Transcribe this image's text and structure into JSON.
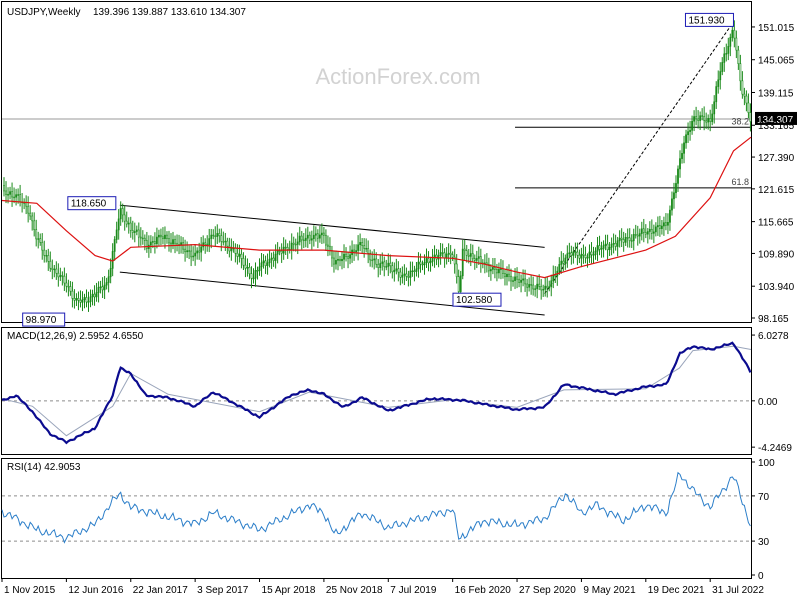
{
  "chart_data": [
    {
      "panel": "price",
      "type": "candlestick",
      "title": "USDJPY,Weekly",
      "ohlc": "139.396 139.887 133.610 134.307",
      "watermark": "ActionForex.com",
      "ylim": [
        98.165,
        155.0
      ],
      "y_ticks": [
        "151.015",
        "145.065",
        "139.115",
        "133.165",
        "127.390",
        "121.615",
        "115.665",
        "109.890",
        "103.940",
        "98.165"
      ],
      "current_price": "134.307",
      "price_path": [
        [
          "1 Nov 2015",
          121.5
        ],
        [
          "20 Dec 2015",
          120.2
        ],
        [
          "1 Feb 2016",
          118.0
        ],
        [
          "1 Mar 2016",
          112.5
        ],
        [
          "1 May 2016",
          106.5
        ],
        [
          "12 Jun 2016",
          104.5
        ],
        [
          "15 Jul 2016",
          101.0
        ],
        [
          "20 Aug 2016",
          101.5
        ],
        [
          "20 Sep 2016",
          102.5
        ],
        [
          "1 Nov 2016",
          104.5
        ],
        [
          "20 Nov 2016",
          110.0
        ],
        [
          "15 Dec 2016",
          117.5
        ],
        [
          "22 Jan 2017",
          114.5
        ],
        [
          "20 Mar 2017",
          111.5
        ],
        [
          "15 May 2017",
          113.0
        ],
        [
          "3 Sep 2017",
          109.5
        ],
        [
          "5 Nov 2017",
          113.5
        ],
        [
          "15 Jan 2018",
          110.5
        ],
        [
          "25 Mar 2018",
          105.5
        ],
        [
          "15 Apr 2018",
          107.5
        ],
        [
          "20 Jul 2018",
          111.0
        ],
        [
          "5 Oct 2018",
          113.0
        ],
        [
          "25 Nov 2018",
          113.0
        ],
        [
          "3 Jan 2019",
          108.0
        ],
        [
          "7 Apr 2019",
          111.5
        ],
        [
          "1 Jun 2019",
          107.5
        ],
        [
          "7 Jul 2019",
          108.0
        ],
        [
          "25 Aug 2019",
          105.5
        ],
        [
          "1 Dec 2019",
          109.0
        ],
        [
          "16 Feb 2020",
          110.0
        ],
        [
          "9 Mar 2020",
          102.6
        ],
        [
          "23 Mar 2020",
          110.5
        ],
        [
          "1 Jun 2020",
          108.0
        ],
        [
          "27 Sep 2020",
          105.0
        ],
        [
          "1 Jan 2021",
          103.2
        ],
        [
          "1 Apr 2021",
          110.5
        ],
        [
          "9 May 2021",
          109.0
        ],
        [
          "1 Jul 2021",
          110.5
        ],
        [
          "19 Dec 2021",
          113.8
        ],
        [
          "1 Mar 2022",
          115.0
        ],
        [
          "1 Apr 2022",
          122.5
        ],
        [
          "1 May 2022",
          130.0
        ],
        [
          "1 Jun 2022",
          134.5
        ],
        [
          "31 Jul 2022",
          134.0
        ],
        [
          "1 Sep 2022",
          142.5
        ],
        [
          "20 Oct 2022",
          151.0
        ],
        [
          "15 Nov 2022",
          140.0
        ],
        [
          "20 Dec 2022",
          134.3
        ]
      ],
      "sma_path": [
        [
          "1 Nov 2015",
          119.5
        ],
        [
          "1 Mar 2016",
          119.0
        ],
        [
          "12 Jun 2016",
          114.0
        ],
        [
          "20 Sep 2016",
          109.5
        ],
        [
          "20 Nov 2016",
          108.5
        ],
        [
          "22 Jan 2017",
          111.0
        ],
        [
          "3 Sep 2017",
          111.5
        ],
        [
          "15 Apr 2018",
          110.5
        ],
        [
          "25 Nov 2018",
          110.5
        ],
        [
          "7 Jul 2019",
          109.5
        ],
        [
          "16 Feb 2020",
          109.0
        ],
        [
          "1 Jun 2020",
          108.0
        ],
        [
          "27 Sep 2020",
          106.5
        ],
        [
          "1 Jan 2021",
          105.5
        ],
        [
          "9 May 2021",
          107.5
        ],
        [
          "19 Dec 2021",
          110.5
        ],
        [
          "1 Apr 2022",
          113.0
        ],
        [
          "31 Jul 2022",
          120.0
        ],
        [
          "20 Oct 2022",
          128.5
        ],
        [
          "20 Dec 2022",
          131.0
        ]
      ],
      "annotations": [
        {
          "label": "151.930",
          "date": "20 Oct 2022",
          "value": 151.93
        },
        {
          "label": "118.650",
          "date": "15 Dec 2016",
          "value": 118.65
        },
        {
          "label": "98.970",
          "date": "20 Jun 2016",
          "value": 98.97
        },
        {
          "label": "102.580",
          "date": "9 Mar 2020",
          "value": 102.58
        }
      ],
      "fib_levels": [
        {
          "label": "38.2",
          "value": 132.8
        },
        {
          "label": "61.8",
          "value": 121.8
        }
      ],
      "horizontal_line": 134.307,
      "channel": [
        {
          "from": [
            "15 Dec 2016",
            118.65
          ],
          "to": [
            "1 Jan 2021",
            111.0
          ]
        },
        {
          "from": [
            "15 Dec 2016",
            106.5
          ],
          "to": [
            "1 Jan 2021",
            98.7
          ]
        }
      ],
      "trend_line": {
        "from": [
          "1 Jan 2021",
          102.58
        ],
        "to": [
          "20 Oct 2022",
          151.93
        ]
      }
    },
    {
      "panel": "macd",
      "type": "line",
      "title": "MACD(12,26,9) 2.5952 4.6550",
      "ylim": [
        -4.6,
        6.4
      ],
      "y_ticks": [
        "6.0278",
        "0.00",
        "-4.2469"
      ],
      "macd_path": [
        [
          "1 Nov 2015",
          0.0
        ],
        [
          "20 Dec 2015",
          0.5
        ],
        [
          "15 Feb 2016",
          -1.0
        ],
        [
          "15 Apr 2016",
          -3.0
        ],
        [
          "12 Jun 2016",
          -3.8
        ],
        [
          "20 Sep 2016",
          -2.5
        ],
        [
          "20 Nov 2016",
          0.5
        ],
        [
          "15 Dec 2016",
          3.0
        ],
        [
          "22 Jan 2017",
          2.5
        ],
        [
          "15 Mar 2017",
          0.5
        ],
        [
          "1 Jun 2017",
          0.3
        ],
        [
          "3 Sep 2017",
          -0.5
        ],
        [
          "5 Nov 2017",
          0.8
        ],
        [
          "15 Jan 2018",
          -0.2
        ],
        [
          "15 Apr 2018",
          -1.5
        ],
        [
          "1 Aug 2018",
          0.5
        ],
        [
          "5 Oct 2018",
          1.0
        ],
        [
          "25 Nov 2018",
          0.6
        ],
        [
          "1 Feb 2019",
          -0.6
        ],
        [
          "7 Apr 2019",
          0.3
        ],
        [
          "7 Jul 2019",
          -0.9
        ],
        [
          "1 Dec 2019",
          0.2
        ],
        [
          "16 Feb 2020",
          0.1
        ],
        [
          "1 Apr 2020",
          0.0
        ],
        [
          "1 Jun 2020",
          -0.3
        ],
        [
          "27 Sep 2020",
          -0.8
        ],
        [
          "1 Jan 2021",
          -0.6
        ],
        [
          "9 Mar 2021",
          1.5
        ],
        [
          "9 May 2021",
          1.2
        ],
        [
          "1 Sep 2021",
          0.6
        ],
        [
          "19 Dec 2021",
          1.3
        ],
        [
          "1 Mar 2022",
          1.5
        ],
        [
          "15 Apr 2022",
          4.3
        ],
        [
          "1 Jun 2022",
          5.0
        ],
        [
          "31 Jul 2022",
          4.7
        ],
        [
          "20 Oct 2022",
          5.3
        ],
        [
          "20 Dec 2022",
          2.6
        ]
      ],
      "signal_path": [
        [
          "1 Nov 2015",
          0.2
        ],
        [
          "15 Feb 2016",
          -0.5
        ],
        [
          "12 Jun 2016",
          -3.2
        ],
        [
          "20 Nov 2016",
          -0.5
        ],
        [
          "22 Jan 2017",
          2.5
        ],
        [
          "1 Jun 2017",
          0.6
        ],
        [
          "15 Apr 2018",
          -1.0
        ],
        [
          "5 Oct 2018",
          0.8
        ],
        [
          "7 Jul 2019",
          -0.6
        ],
        [
          "16 Feb 2020",
          0.1
        ],
        [
          "27 Sep 2020",
          -0.6
        ],
        [
          "9 Mar 2021",
          1.0
        ],
        [
          "19 Dec 2021",
          1.1
        ],
        [
          "15 Apr 2022",
          3.0
        ],
        [
          "1 Jun 2022",
          4.6
        ],
        [
          "20 Oct 2022",
          5.0
        ],
        [
          "20 Dec 2022",
          4.7
        ]
      ]
    },
    {
      "panel": "rsi",
      "type": "line",
      "title": "RSI(14) 42.9053",
      "ylim": [
        0,
        100
      ],
      "y_ticks": [
        "100",
        "70",
        "30",
        "0"
      ],
      "guide_levels": [
        70,
        30
      ],
      "rsi_path": [
        [
          "1 Nov 2015",
          56
        ],
        [
          "20 Dec 2015",
          50
        ],
        [
          "1 Mar 2016",
          40
        ],
        [
          "12 Jun 2016",
          33
        ],
        [
          "20 Sep 2016",
          45
        ],
        [
          "20 Nov 2016",
          65
        ],
        [
          "15 Dec 2016",
          72
        ],
        [
          "22 Jan 2017",
          60
        ],
        [
          "3 Sep 2017",
          45
        ],
        [
          "5 Nov 2017",
          55
        ],
        [
          "15 Apr 2018",
          40
        ],
        [
          "5 Oct 2018",
          62
        ],
        [
          "25 Nov 2018",
          55
        ],
        [
          "3 Jan 2019",
          35
        ],
        [
          "7 Apr 2019",
          55
        ],
        [
          "7 Jul 2019",
          42
        ],
        [
          "16 Feb 2020",
          58
        ],
        [
          "9 Mar 2020",
          32
        ],
        [
          "1 Jun 2020",
          48
        ],
        [
          "27 Sep 2020",
          44
        ],
        [
          "1 Jan 2021",
          50
        ],
        [
          "15 Mar 2021",
          72
        ],
        [
          "9 May 2021",
          55
        ],
        [
          "1 Jul 2021",
          62
        ],
        [
          "1 Oct 2021",
          48
        ],
        [
          "19 Dec 2021",
          62
        ],
        [
          "1 Mar 2022",
          55
        ],
        [
          "15 Apr 2022",
          90
        ],
        [
          "1 Jun 2022",
          75
        ],
        [
          "31 Jul 2022",
          60
        ],
        [
          "20 Oct 2022",
          88
        ],
        [
          "20 Dec 2022",
          43
        ]
      ]
    }
  ],
  "x_axis": {
    "tick_labels": [
      "1 Nov 2015",
      "12 Jun 2016",
      "22 Jan 2017",
      "3 Sep 2017",
      "15 Apr 2018",
      "25 Nov 2018",
      "7 Jul 2019",
      "16 Feb 2020",
      "27 Sep 2020",
      "9 May 2021",
      "19 Dec 2021",
      "31 Jul 2022"
    ],
    "range": [
      "1 Nov 2015",
      "20 Dec 2022"
    ]
  },
  "colors": {
    "candle": "#1a8a1a",
    "sma": "#dd1111",
    "macd": "#0b0b8f",
    "signal": "#9aa5bb",
    "rsi": "#2b7ec9",
    "grid": "#8c8c8c",
    "watermark": "#d2d2d2",
    "text": "#000000"
  }
}
